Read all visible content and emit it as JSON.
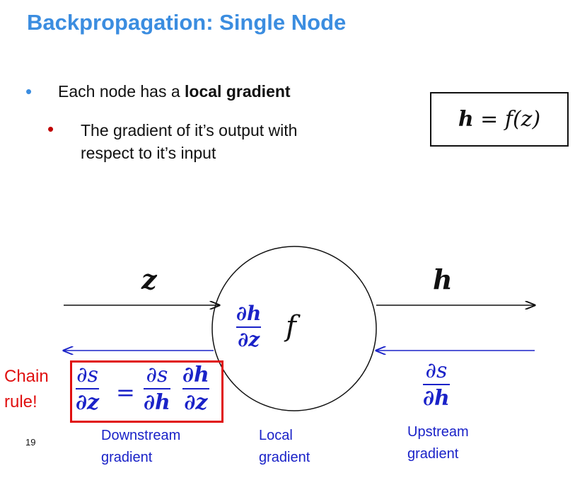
{
  "title": "Backpropagation: Single Node",
  "bullets": {
    "level1": "Each node has a ",
    "level1_bold": "local gradient",
    "level2_line1": "The gradient of it’s output with",
    "level2_line2": "respect to it’s input"
  },
  "formula_box": {
    "lhs": "h",
    "eq": " = ",
    "rhs": "f(z)"
  },
  "diagram": {
    "input_var": "z",
    "output_var": "h",
    "node_function": "f",
    "local_grad": {
      "num": "∂h",
      "den": "∂z"
    },
    "upstream_grad": {
      "num": "∂s",
      "den": "∂h"
    },
    "downstream": {
      "lhs_num": "∂s",
      "lhs_den": "∂z",
      "equals": "=",
      "rhs1_num": "∂s",
      "rhs1_den": "∂h",
      "rhs2_num": "∂h",
      "rhs2_den": "∂z"
    }
  },
  "labels": {
    "chain_line1": "Chain",
    "chain_line2": "rule!",
    "downstream_line1": "Downstream",
    "downstream_line2": "gradient",
    "local_line1": "Local",
    "local_line2": "gradient",
    "upstream_line1": "Upstream",
    "upstream_line2": "gradient"
  },
  "page_number": "19",
  "colors": {
    "title": "#3b8de0",
    "bullet1": "#3b8de0",
    "bullet2": "#c00000",
    "gradient_blue": "#1a22c8",
    "chain_red": "#e01010"
  }
}
